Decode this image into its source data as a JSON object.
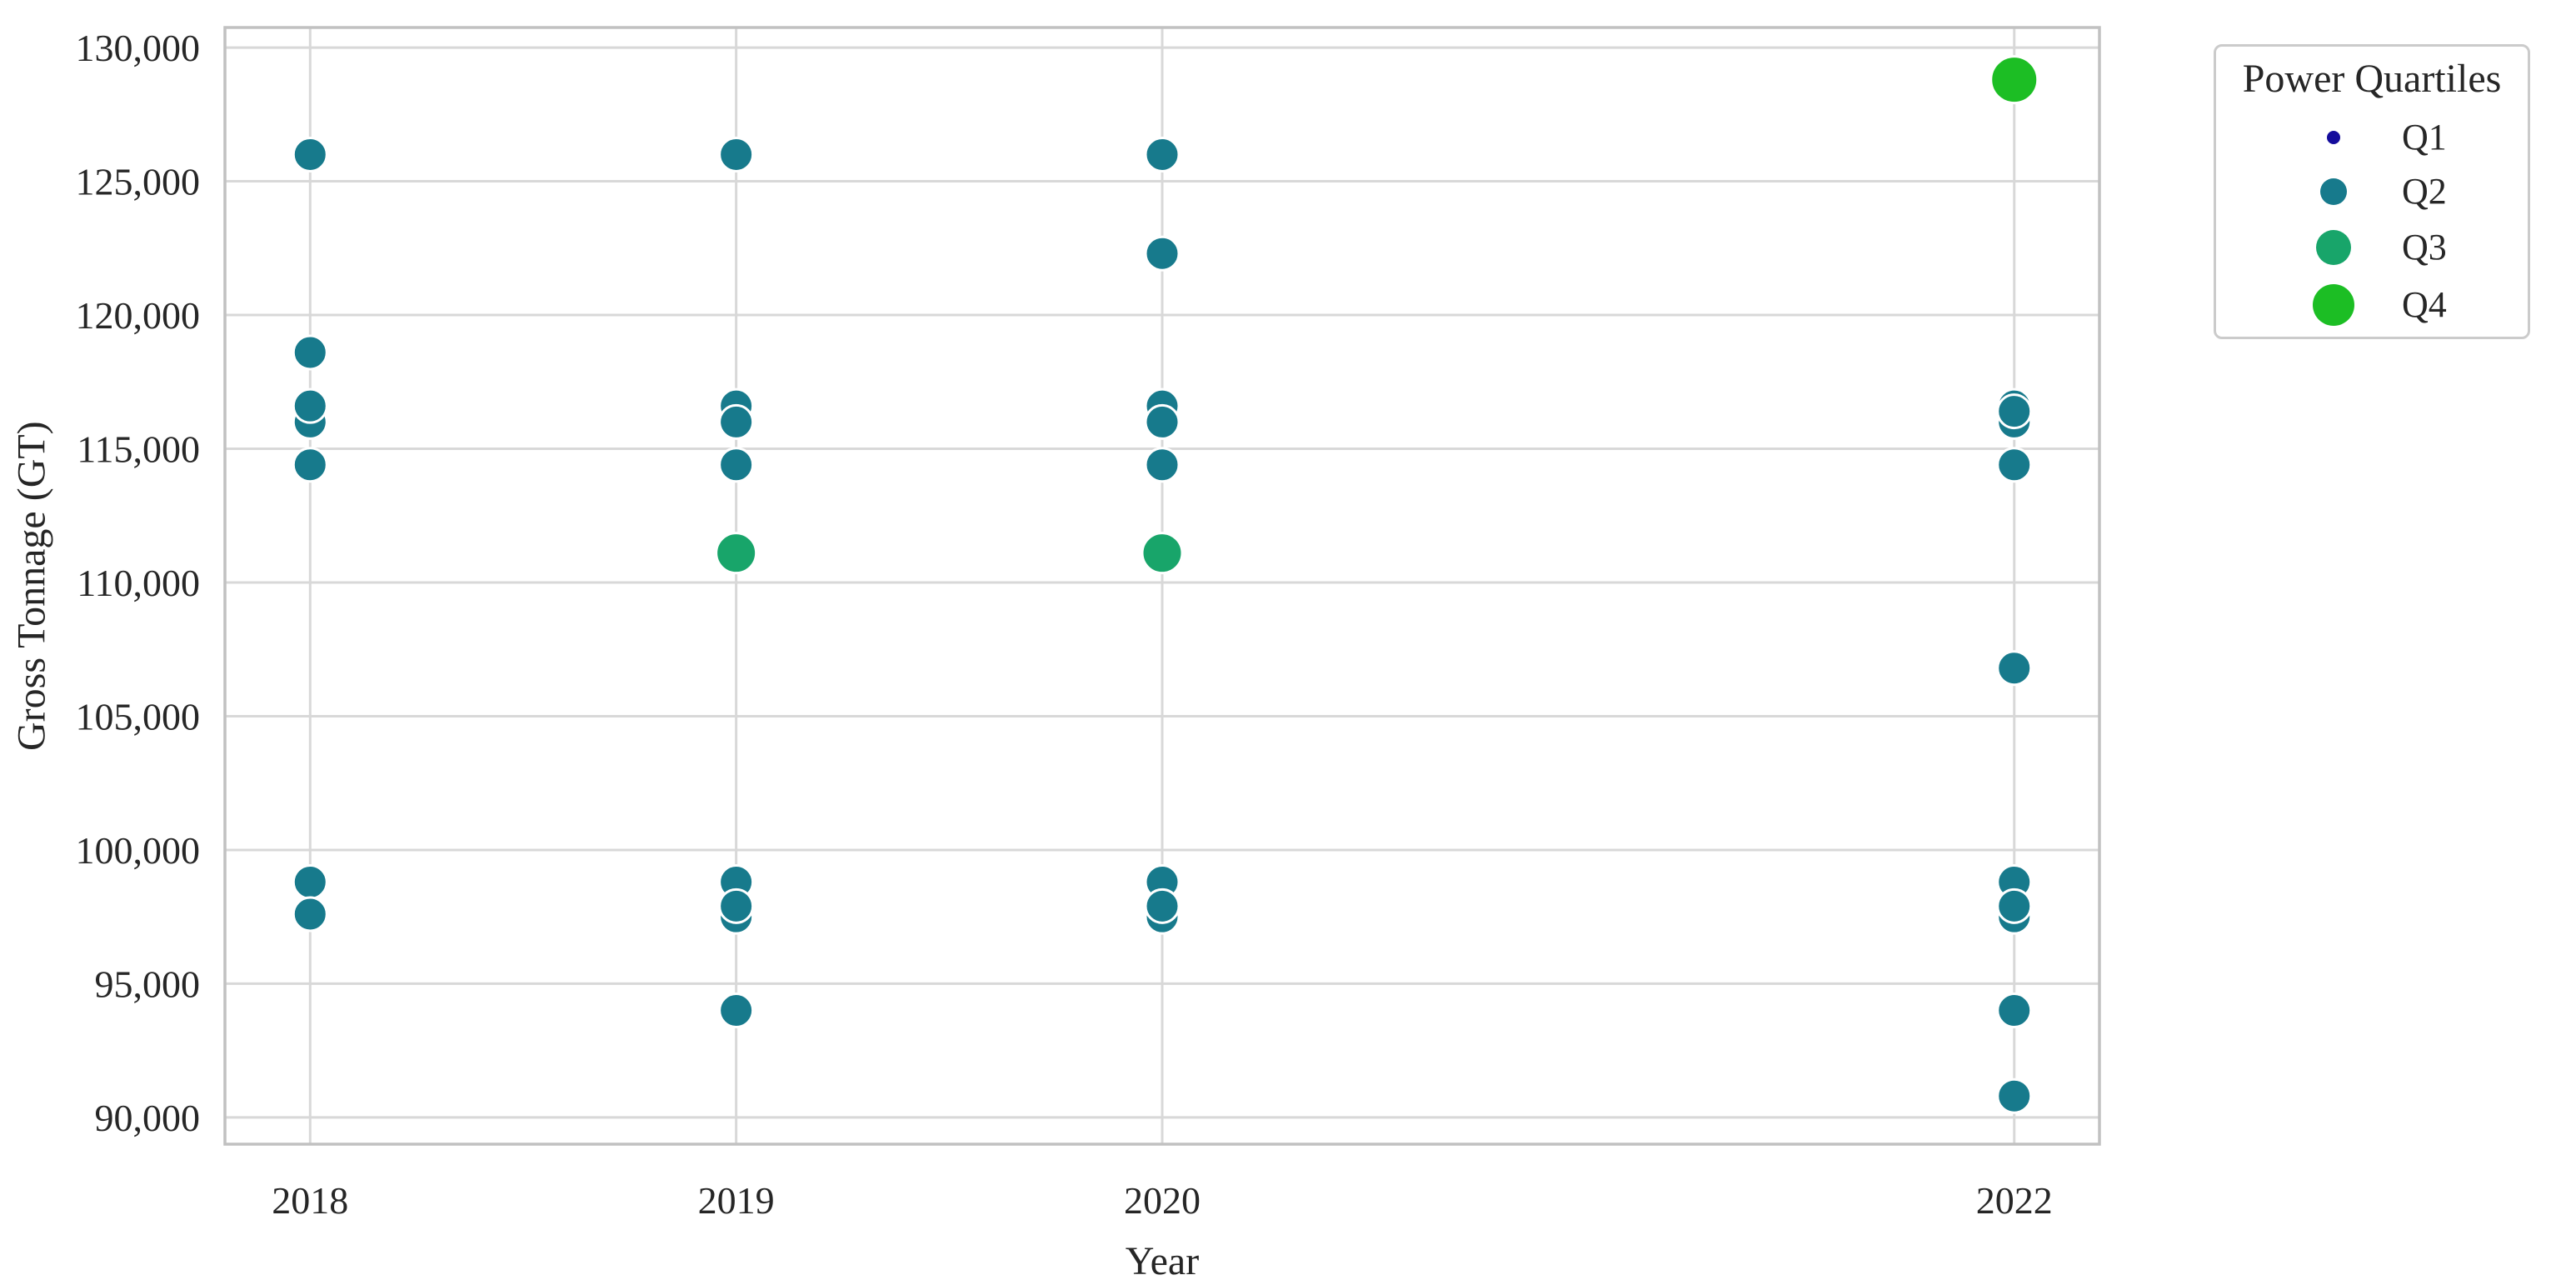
{
  "chart_data": {
    "type": "scatter",
    "title": "",
    "xlabel": "Year",
    "ylabel": "Gross Tonnage (GT)",
    "xlim": [
      2017.8,
      2022.2
    ],
    "ylim": [
      89000,
      130750
    ],
    "grid": true,
    "grid_color": "#d8d8d8",
    "border_color": "#c1c1c1",
    "marker_edge_color": "#ffffff",
    "x_ticks": [
      {
        "value": 2018,
        "label": "2018"
      },
      {
        "value": 2019,
        "label": "2019"
      },
      {
        "value": 2020,
        "label": "2020"
      },
      {
        "value": 2022,
        "label": "2022"
      }
    ],
    "y_ticks": [
      {
        "value": 90000,
        "label": "90,000"
      },
      {
        "value": 95000,
        "label": "95,000"
      },
      {
        "value": 100000,
        "label": "100,000"
      },
      {
        "value": 105000,
        "label": "105,000"
      },
      {
        "value": 110000,
        "label": "110,000"
      },
      {
        "value": 115000,
        "label": "115,000"
      },
      {
        "value": 120000,
        "label": "120,000"
      },
      {
        "value": 125000,
        "label": "125,000"
      },
      {
        "value": 130000,
        "label": "130,000"
      }
    ],
    "legend": {
      "title": "Power Quartiles",
      "position": "outside-upper-right",
      "entries": [
        {
          "label": "Q1",
          "color": "#140c9c",
          "legend_dot_diameter": 16,
          "plot_dot_radius": 9
        },
        {
          "label": "Q2",
          "color": "#177a8c",
          "legend_dot_diameter": 32,
          "plot_dot_radius": 20
        },
        {
          "label": "Q3",
          "color": "#18a56a",
          "legend_dot_diameter": 42,
          "plot_dot_radius": 24
        },
        {
          "label": "Q4",
          "color": "#1cbe24",
          "legend_dot_diameter": 50,
          "plot_dot_radius": 28
        }
      ]
    },
    "points": [
      {
        "year": 2018,
        "gt": 126000,
        "quartile": "Q2"
      },
      {
        "year": 2018,
        "gt": 118600,
        "quartile": "Q2"
      },
      {
        "year": 2018,
        "gt": 116000,
        "quartile": "Q2"
      },
      {
        "year": 2018,
        "gt": 116600,
        "quartile": "Q2"
      },
      {
        "year": 2018,
        "gt": 114400,
        "quartile": "Q2"
      },
      {
        "year": 2018,
        "gt": 98800,
        "quartile": "Q2"
      },
      {
        "year": 2018,
        "gt": 97600,
        "quartile": "Q2"
      },
      {
        "year": 2019,
        "gt": 126000,
        "quartile": "Q2"
      },
      {
        "year": 2019,
        "gt": 116600,
        "quartile": "Q2"
      },
      {
        "year": 2019,
        "gt": 116000,
        "quartile": "Q2"
      },
      {
        "year": 2019,
        "gt": 114400,
        "quartile": "Q2"
      },
      {
        "year": 2019,
        "gt": 111100,
        "quartile": "Q3"
      },
      {
        "year": 2019,
        "gt": 97500,
        "quartile": "Q2"
      },
      {
        "year": 2019,
        "gt": 98800,
        "quartile": "Q2"
      },
      {
        "year": 2019,
        "gt": 97900,
        "quartile": "Q2"
      },
      {
        "year": 2019,
        "gt": 94000,
        "quartile": "Q2"
      },
      {
        "year": 2020,
        "gt": 126000,
        "quartile": "Q2"
      },
      {
        "year": 2020,
        "gt": 122300,
        "quartile": "Q2"
      },
      {
        "year": 2020,
        "gt": 116600,
        "quartile": "Q2"
      },
      {
        "year": 2020,
        "gt": 116000,
        "quartile": "Q2"
      },
      {
        "year": 2020,
        "gt": 114400,
        "quartile": "Q2"
      },
      {
        "year": 2020,
        "gt": 111100,
        "quartile": "Q3"
      },
      {
        "year": 2020,
        "gt": 97500,
        "quartile": "Q2"
      },
      {
        "year": 2020,
        "gt": 98800,
        "quartile": "Q2"
      },
      {
        "year": 2020,
        "gt": 97900,
        "quartile": "Q2"
      },
      {
        "year": 2022,
        "gt": 128800,
        "quartile": "Q4"
      },
      {
        "year": 2022,
        "gt": 116600,
        "quartile": "Q2"
      },
      {
        "year": 2022,
        "gt": 116000,
        "quartile": "Q2"
      },
      {
        "year": 2022,
        "gt": 116400,
        "quartile": "Q2"
      },
      {
        "year": 2022,
        "gt": 114400,
        "quartile": "Q2"
      },
      {
        "year": 2022,
        "gt": 106800,
        "quartile": "Q2"
      },
      {
        "year": 2022,
        "gt": 97500,
        "quartile": "Q2"
      },
      {
        "year": 2022,
        "gt": 98800,
        "quartile": "Q2"
      },
      {
        "year": 2022,
        "gt": 97900,
        "quartile": "Q2"
      },
      {
        "year": 2022,
        "gt": 94000,
        "quartile": "Q2"
      },
      {
        "year": 2022,
        "gt": 90800,
        "quartile": "Q2"
      }
    ]
  }
}
